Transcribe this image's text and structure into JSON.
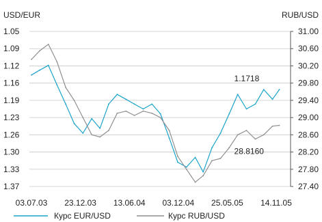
{
  "chart_data": {
    "type": "line",
    "left_axis": {
      "title": "USD/EUR",
      "tick_labels": [
        "1.05",
        "1.09",
        "1.12",
        "1.16",
        "1.19",
        "1.23",
        "1.26",
        "1.30",
        "1.33",
        "1.37"
      ],
      "range": [
        1.37,
        1.05
      ]
    },
    "right_axis": {
      "title": "RUB/USD",
      "tick_labels": [
        "31.00",
        "30.60",
        "30.20",
        "29.80",
        "29.40",
        "29.00",
        "28.60",
        "28.20",
        "27.80",
        "27.40"
      ],
      "range": [
        27.4,
        31.0
      ]
    },
    "x_tick_labels": [
      "03.07.03",
      "23.12.03",
      "13.06.04",
      "03.12.04",
      "25.05.05",
      "14.11.05"
    ],
    "grid": "horizontal",
    "legend_position": "bottom",
    "annotations": [
      {
        "text": "1.1718",
        "series": "Курс EUR/USD"
      },
      {
        "text": "28.8160",
        "series": "Курс RUB/USD"
      }
    ],
    "series": [
      {
        "name": "Курс EUR/USD",
        "color": "#1aa3c9",
        "axis": "left",
        "x": [
          "03.07.03",
          "01.08.03",
          "01.09.03",
          "01.10.03",
          "01.11.03",
          "01.12.03",
          "01.01.04",
          "01.02.04",
          "01.03.04",
          "01.04.04",
          "01.05.04",
          "01.06.04",
          "01.07.04",
          "01.08.04",
          "01.09.04",
          "01.10.04",
          "01.11.04",
          "01.12.04",
          "01.01.05",
          "01.02.05",
          "01.03.05",
          "01.04.05",
          "01.05.05",
          "01.06.05",
          "01.07.05",
          "01.08.05",
          "01.09.05",
          "01.10.05",
          "01.11.05",
          "25.11.05"
        ],
        "values": [
          1.14,
          1.13,
          1.12,
          1.16,
          1.2,
          1.24,
          1.26,
          1.23,
          1.25,
          1.2,
          1.18,
          1.19,
          1.2,
          1.21,
          1.2,
          1.22,
          1.27,
          1.32,
          1.33,
          1.31,
          1.34,
          1.29,
          1.26,
          1.22,
          1.18,
          1.21,
          1.2,
          1.17,
          1.19,
          1.17
        ]
      },
      {
        "name": "Курс RUB/USD",
        "color": "#8f8f8f",
        "axis": "right",
        "x": [
          "03.07.03",
          "01.08.03",
          "01.09.03",
          "01.10.03",
          "01.11.03",
          "01.12.03",
          "01.01.04",
          "01.02.04",
          "01.03.04",
          "01.04.04",
          "01.05.04",
          "01.06.04",
          "01.07.04",
          "01.08.04",
          "01.09.04",
          "01.10.04",
          "01.11.04",
          "01.12.04",
          "01.01.05",
          "01.02.05",
          "01.03.05",
          "01.04.05",
          "01.05.05",
          "01.06.05",
          "01.07.05",
          "01.08.05",
          "01.09.05",
          "01.10.05",
          "01.11.05",
          "25.11.05"
        ],
        "values": [
          30.35,
          30.55,
          30.7,
          30.3,
          29.7,
          29.4,
          29.0,
          28.6,
          28.55,
          28.7,
          29.1,
          29.15,
          29.05,
          29.15,
          29.1,
          29.0,
          28.7,
          28.1,
          27.8,
          27.5,
          27.65,
          28.0,
          28.05,
          28.3,
          28.6,
          28.7,
          28.5,
          28.6,
          28.8,
          28.82
        ]
      }
    ]
  }
}
